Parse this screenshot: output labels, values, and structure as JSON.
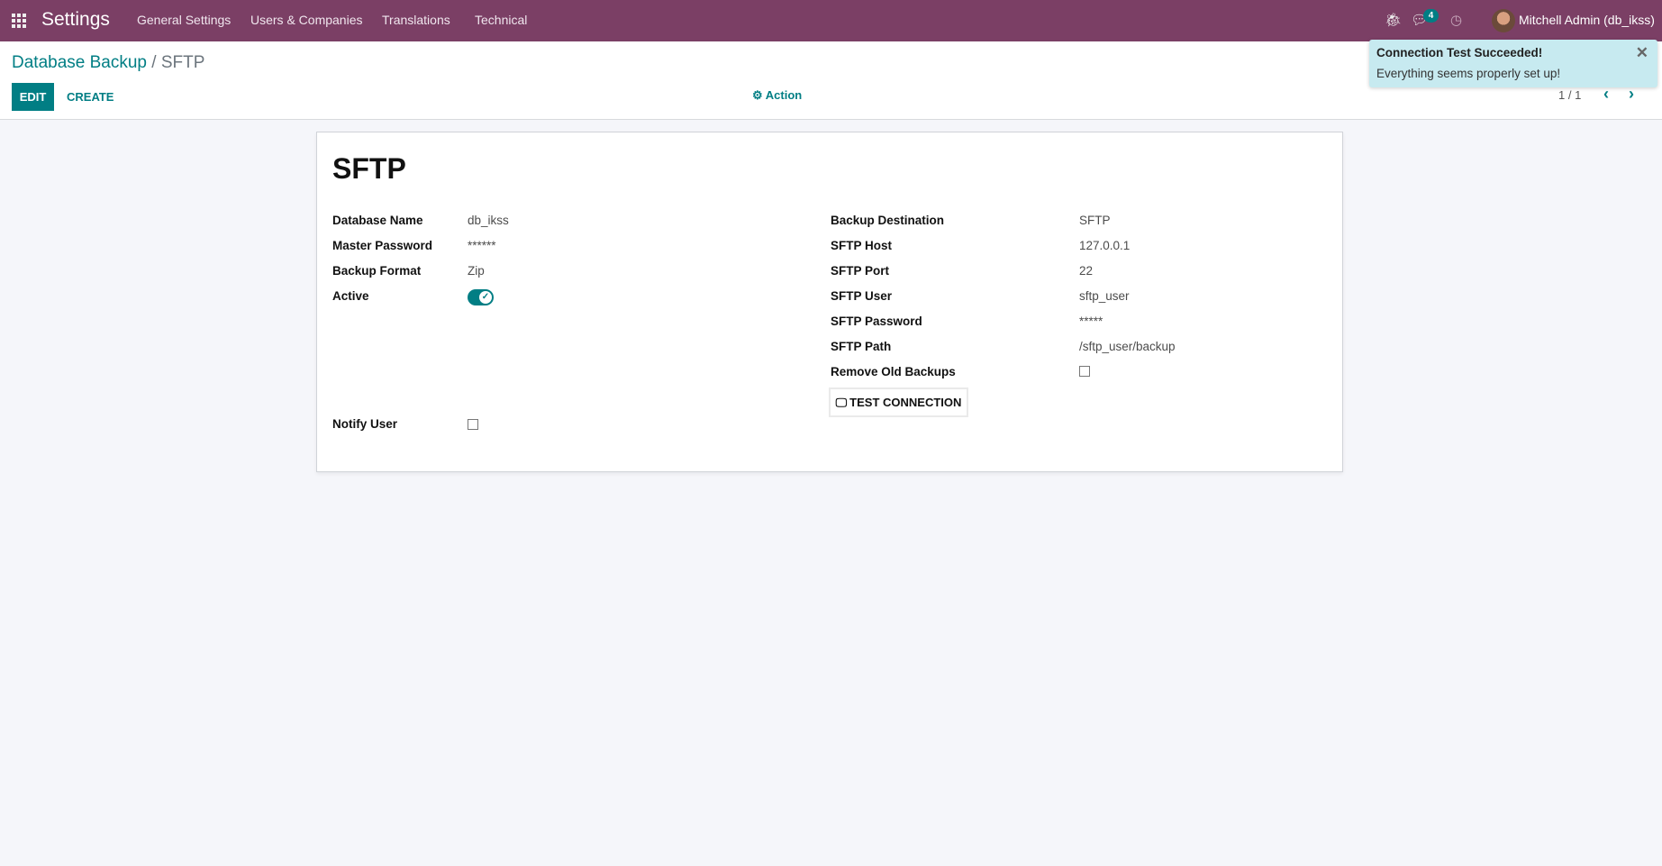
{
  "navbar": {
    "app_title": "Settings",
    "menus": [
      "General Settings",
      "Users & Companies",
      "Translations",
      "Technical"
    ],
    "message_count": "4",
    "user": "Mitchell Admin (db_ikss)",
    "color": "#7b3f65"
  },
  "breadcrumb": {
    "parent": "Database Backup",
    "separator": " / ",
    "current": "SFTP"
  },
  "toolbar": {
    "edit": "EDIT",
    "create": "CREATE",
    "action": "Action",
    "pager": "1 / 1"
  },
  "record": {
    "title": "SFTP",
    "left": [
      {
        "label": "Database Name",
        "value": "db_ikss"
      },
      {
        "label": "Master Password",
        "value": "******"
      },
      {
        "label": "Backup Format",
        "value": "Zip"
      },
      {
        "label": "Active",
        "value": true
      }
    ],
    "notify_user": {
      "label": "Notify User",
      "checked": false
    },
    "right": [
      {
        "label": "Backup Destination",
        "value": "SFTP"
      },
      {
        "label": "SFTP Host",
        "value": "127.0.0.1"
      },
      {
        "label": "SFTP Port",
        "value": "22"
      },
      {
        "label": "SFTP User",
        "value": "sftp_user"
      },
      {
        "label": "SFTP Password",
        "value": "*****"
      },
      {
        "label": "SFTP Path",
        "value": "/sftp_user/backup"
      }
    ],
    "remove_old_backups": {
      "label": "Remove Old Backups",
      "checked": false
    },
    "test_connection": "TEST CONNECTION"
  },
  "toast": {
    "title": "Connection Test Succeeded!",
    "message": "Everything seems properly set up!"
  },
  "accent": "#017e84"
}
